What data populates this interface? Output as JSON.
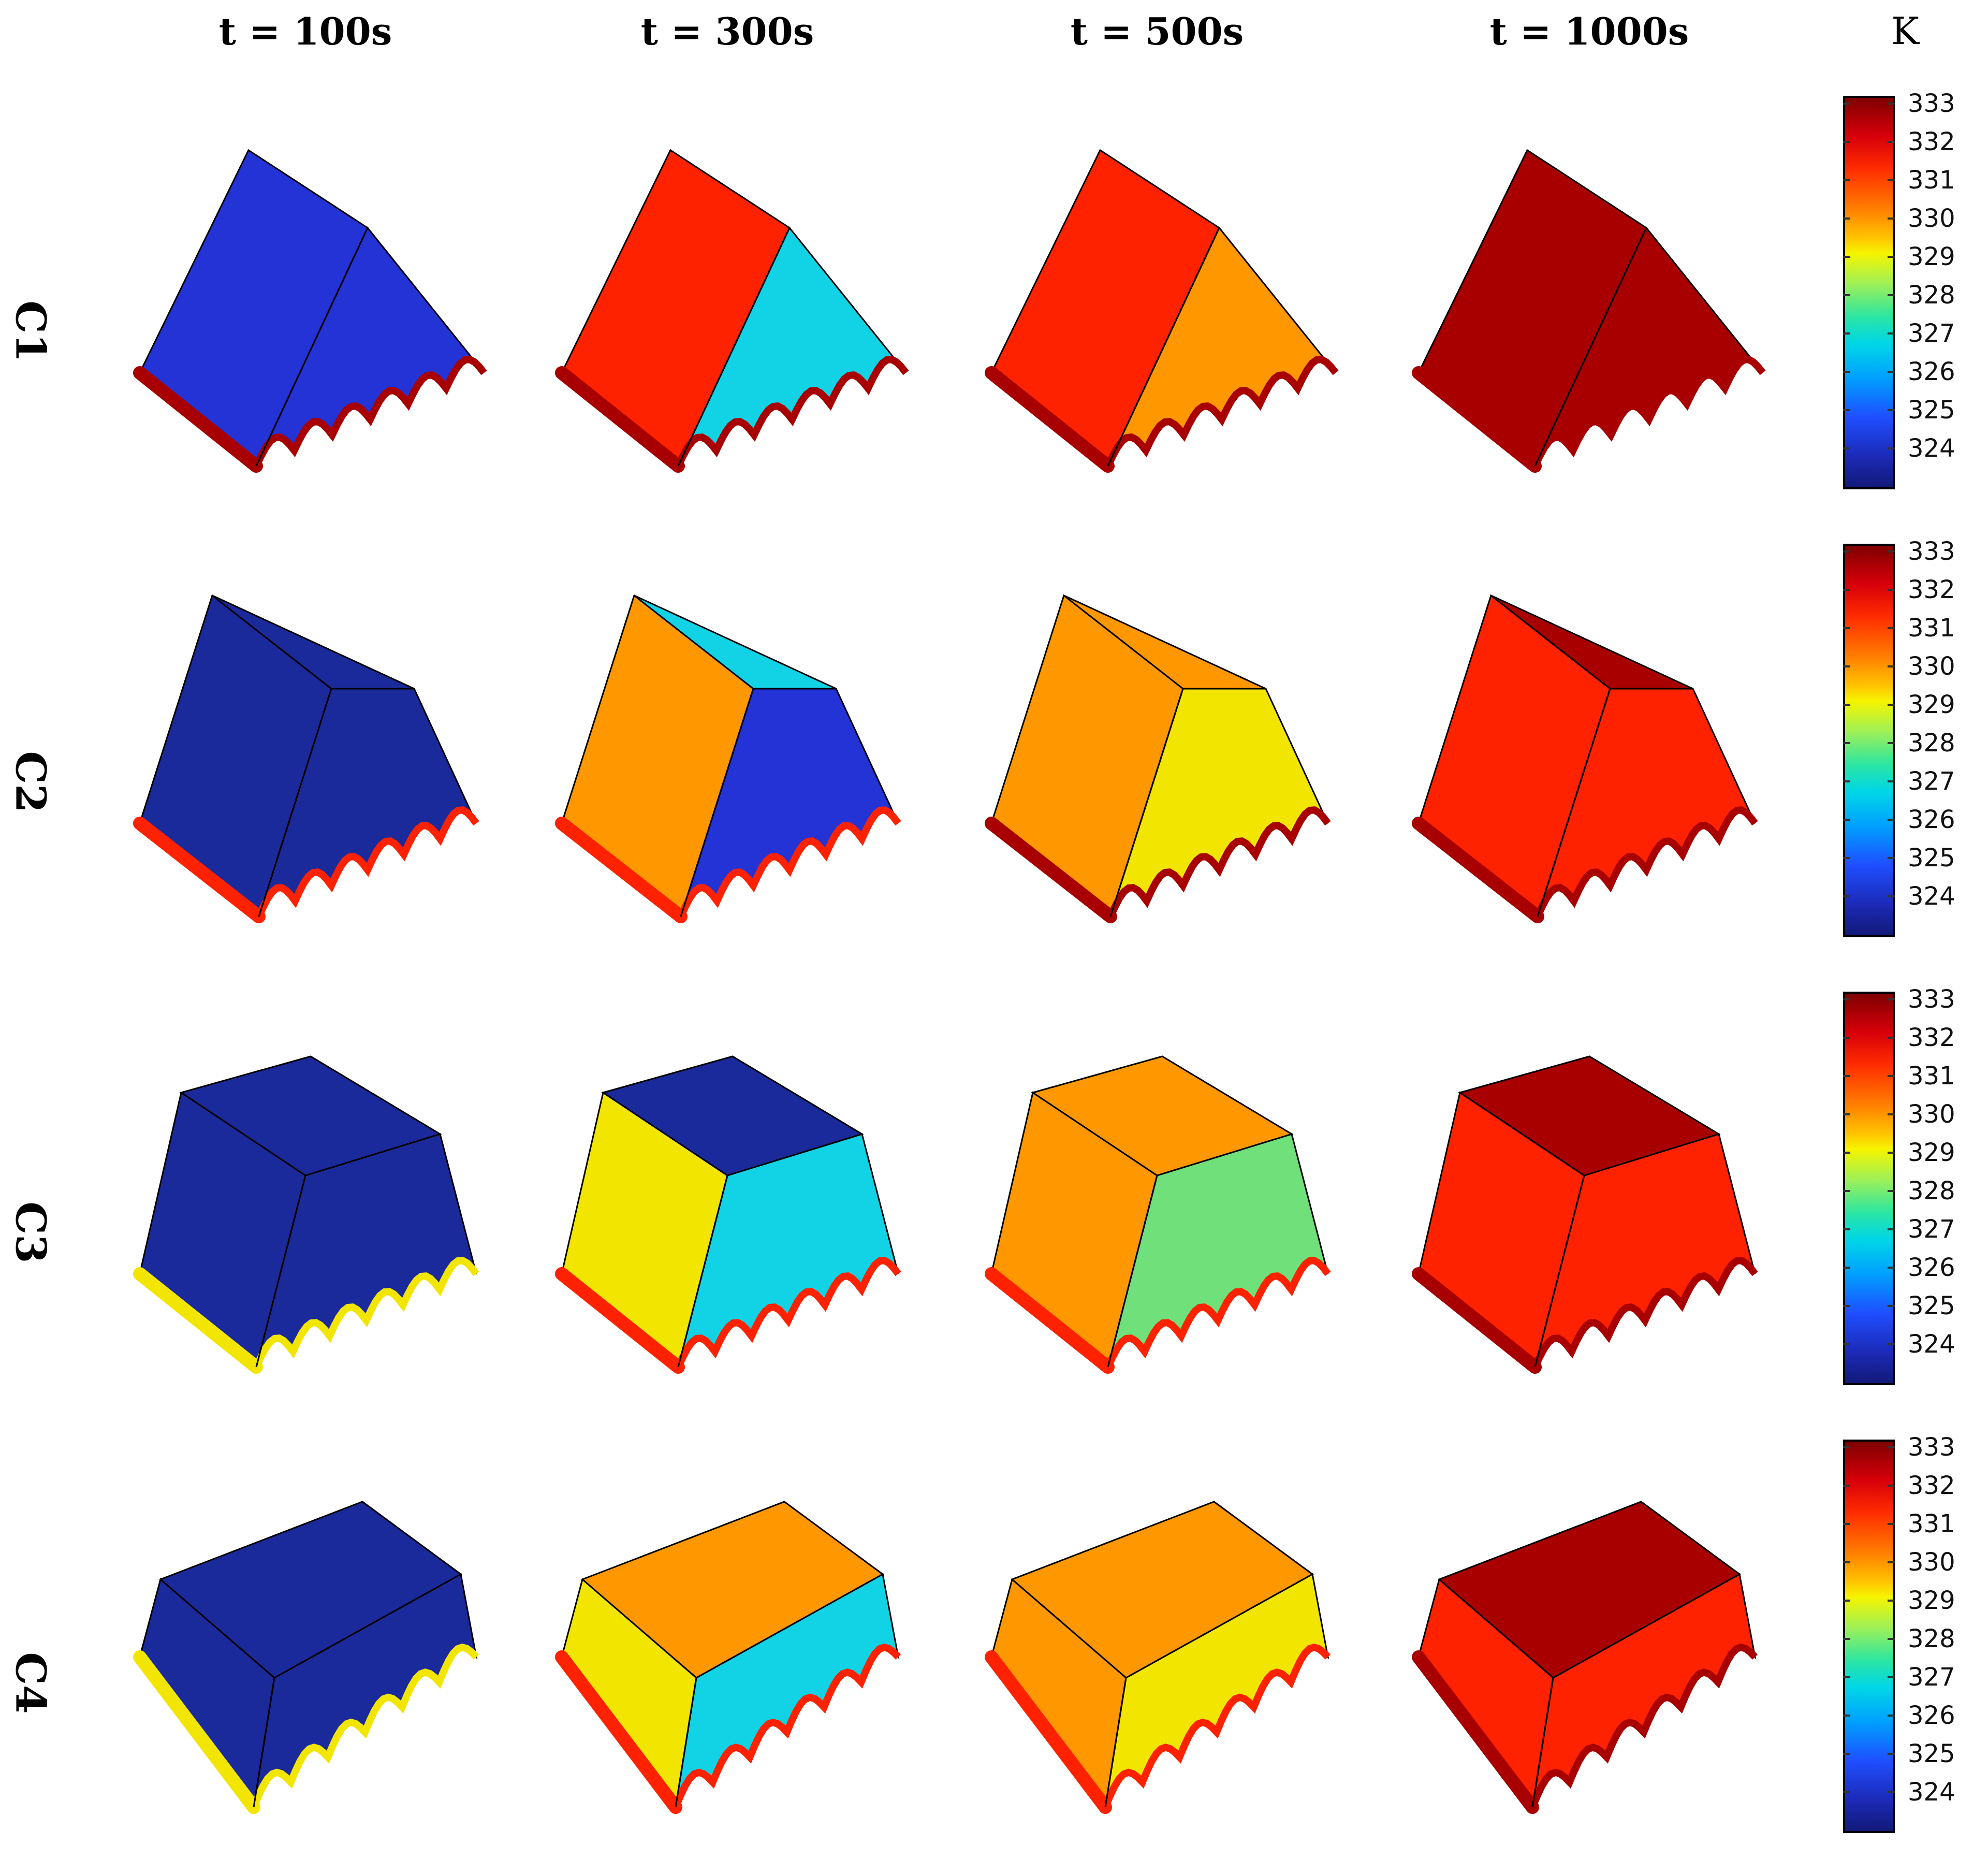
{
  "columns": [
    "t = 100s",
    "t = 300s",
    "t = 500s",
    "t = 1000s"
  ],
  "rows": [
    "C1",
    "C2",
    "C3",
    "C4"
  ],
  "colorbar": {
    "unit": "K",
    "ticks": [
      "333",
      "332",
      "331",
      "330",
      "329",
      "328",
      "327",
      "326",
      "325",
      "324"
    ]
  },
  "colors": {
    "cold": "#1a2a9a",
    "cool_blue": "#2433d6",
    "cyan": "#12d3e6",
    "green": "#6fe07a",
    "yellow": "#f2e600",
    "orange": "#ff9800",
    "red": "#ff2200",
    "dark_red": "#a80000"
  }
}
